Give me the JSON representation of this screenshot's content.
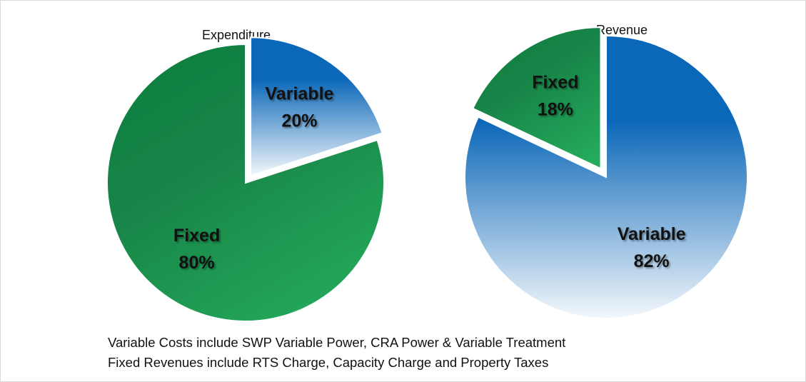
{
  "chart_data": [
    {
      "type": "pie",
      "title": "Expenditure",
      "categories": [
        "Variable",
        "Fixed"
      ],
      "values": [
        20,
        80
      ],
      "value_labels": [
        "20%",
        "80%"
      ],
      "colors": [
        "#0b67b8",
        "#0c7f3e"
      ],
      "exploded": [
        true,
        false
      ]
    },
    {
      "type": "pie",
      "title": "Revenue",
      "categories": [
        "Variable",
        "Fixed"
      ],
      "values": [
        82,
        18
      ],
      "value_labels": [
        "82%",
        "18%"
      ],
      "colors": [
        "#0b67b8",
        "#0c7f3e"
      ],
      "exploded": [
        false,
        true
      ]
    }
  ],
  "notes": [
    "Variable Costs include SWP Variable Power, CRA Power & Variable Treatment",
    "Fixed Revenues include RTS Charge, Capacity Charge and Property Taxes"
  ]
}
